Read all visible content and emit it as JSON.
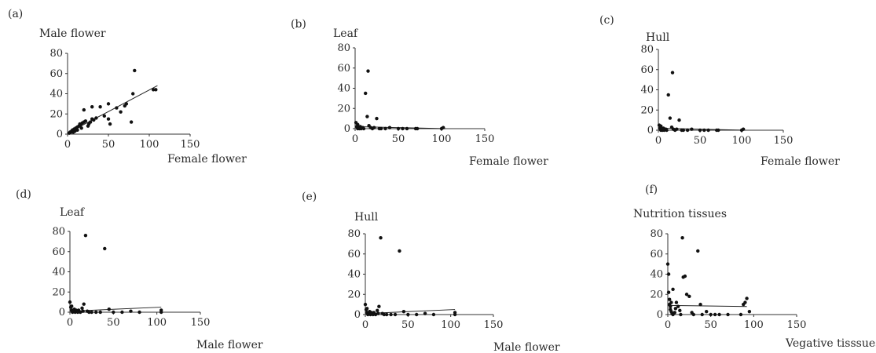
{
  "colors": {
    "point": "#111111",
    "axis": "#333333",
    "text": "#2a2a2a"
  },
  "chart_data": [
    {
      "type": "scatter",
      "panel_label": "(a)",
      "xlabel": "Female flower",
      "ylabel": "Male flower",
      "xlim": [
        0,
        150
      ],
      "ylim": [
        0,
        80
      ],
      "xticks": [
        0,
        50,
        100,
        150
      ],
      "yticks": [
        0,
        20,
        40,
        60,
        80
      ],
      "points": [
        [
          2,
          1
        ],
        [
          3,
          2
        ],
        [
          4,
          2
        ],
        [
          5,
          3
        ],
        [
          6,
          4
        ],
        [
          8,
          5
        ],
        [
          10,
          6
        ],
        [
          12,
          7
        ],
        [
          14,
          8
        ],
        [
          15,
          10
        ],
        [
          16,
          9
        ],
        [
          18,
          11
        ],
        [
          20,
          12
        ],
        [
          22,
          13
        ],
        [
          25,
          8
        ],
        [
          26,
          10
        ],
        [
          28,
          12
        ],
        [
          30,
          15
        ],
        [
          32,
          14
        ],
        [
          35,
          16
        ],
        [
          20,
          24
        ],
        [
          30,
          27
        ],
        [
          40,
          27
        ],
        [
          45,
          18
        ],
        [
          50,
          15
        ],
        [
          50,
          30
        ],
        [
          52,
          10
        ],
        [
          60,
          26
        ],
        [
          65,
          22
        ],
        [
          70,
          28
        ],
        [
          72,
          30
        ],
        [
          80,
          40
        ],
        [
          78,
          12
        ],
        [
          82,
          63
        ],
        [
          105,
          44
        ],
        [
          108,
          44
        ],
        [
          12,
          4
        ],
        [
          9,
          3
        ],
        [
          7,
          2
        ],
        [
          17,
          6
        ]
      ],
      "trendline": [
        [
          0,
          1
        ],
        [
          110,
          48
        ]
      ]
    },
    {
      "type": "scatter",
      "panel_label": "(b)",
      "xlabel": "Female flower",
      "ylabel": "Leaf",
      "xlim": [
        0,
        150
      ],
      "ylim": [
        0,
        80
      ],
      "xticks": [
        0,
        50,
        100,
        150
      ],
      "yticks": [
        0,
        20,
        40,
        60,
        80
      ],
      "points": [
        [
          1,
          6
        ],
        [
          2,
          2
        ],
        [
          3,
          0
        ],
        [
          4,
          1
        ],
        [
          5,
          0
        ],
        [
          6,
          2
        ],
        [
          8,
          1
        ],
        [
          10,
          0
        ],
        [
          12,
          35
        ],
        [
          14,
          12
        ],
        [
          15,
          57
        ],
        [
          16,
          3
        ],
        [
          18,
          1
        ],
        [
          20,
          0
        ],
        [
          22,
          1
        ],
        [
          25,
          10
        ],
        [
          28,
          0
        ],
        [
          30,
          0
        ],
        [
          35,
          0
        ],
        [
          40,
          1
        ],
        [
          50,
          0
        ],
        [
          55,
          0
        ],
        [
          60,
          0
        ],
        [
          70,
          0
        ],
        [
          72,
          0
        ],
        [
          100,
          0
        ],
        [
          102,
          1
        ],
        [
          3,
          4
        ],
        [
          7,
          0
        ],
        [
          9,
          1
        ]
      ],
      "trendline": [
        [
          0,
          2
        ],
        [
          105,
          0
        ]
      ]
    },
    {
      "type": "scatter",
      "panel_label": "(c)",
      "xlabel": "Female flower",
      "ylabel": "Hull",
      "xlim": [
        0,
        150
      ],
      "ylim": [
        0,
        80
      ],
      "xticks": [
        0,
        50,
        100,
        150
      ],
      "yticks": [
        0,
        20,
        40,
        60,
        80
      ],
      "points": [
        [
          1,
          5
        ],
        [
          2,
          2
        ],
        [
          3,
          0
        ],
        [
          4,
          1
        ],
        [
          5,
          0
        ],
        [
          6,
          2
        ],
        [
          8,
          1
        ],
        [
          10,
          0
        ],
        [
          12,
          35
        ],
        [
          14,
          12
        ],
        [
          17,
          57
        ],
        [
          16,
          3
        ],
        [
          18,
          1
        ],
        [
          20,
          0
        ],
        [
          22,
          1
        ],
        [
          25,
          10
        ],
        [
          28,
          0
        ],
        [
          30,
          0
        ],
        [
          35,
          0
        ],
        [
          40,
          1
        ],
        [
          50,
          0
        ],
        [
          55,
          0
        ],
        [
          60,
          0
        ],
        [
          70,
          0
        ],
        [
          72,
          0
        ],
        [
          100,
          0
        ],
        [
          102,
          1
        ],
        [
          3,
          4
        ],
        [
          7,
          0
        ],
        [
          9,
          1
        ]
      ],
      "trendline": [
        [
          0,
          2
        ],
        [
          105,
          0
        ]
      ]
    },
    {
      "type": "scatter",
      "panel_label": "(d)",
      "xlabel": "Male flower",
      "ylabel": "Leaf",
      "xlim": [
        0,
        150
      ],
      "ylim": [
        0,
        80
      ],
      "xticks": [
        0,
        50,
        100,
        150
      ],
      "yticks": [
        0,
        20,
        40,
        60,
        80
      ],
      "points": [
        [
          0,
          10
        ],
        [
          1,
          5
        ],
        [
          2,
          2
        ],
        [
          3,
          0
        ],
        [
          4,
          1
        ],
        [
          5,
          3
        ],
        [
          6,
          0
        ],
        [
          8,
          1
        ],
        [
          10,
          2
        ],
        [
          12,
          0
        ],
        [
          14,
          4
        ],
        [
          15,
          1
        ],
        [
          18,
          76
        ],
        [
          20,
          1
        ],
        [
          22,
          0
        ],
        [
          25,
          0
        ],
        [
          30,
          0
        ],
        [
          35,
          0
        ],
        [
          40,
          63
        ],
        [
          45,
          3
        ],
        [
          50,
          0
        ],
        [
          60,
          0
        ],
        [
          70,
          1
        ],
        [
          80,
          0
        ],
        [
          105,
          2
        ],
        [
          105,
          0
        ],
        [
          2,
          6
        ],
        [
          7,
          2
        ],
        [
          9,
          0
        ],
        [
          16,
          8
        ]
      ],
      "trendline": [
        [
          0,
          1
        ],
        [
          105,
          5
        ]
      ]
    },
    {
      "type": "scatter",
      "panel_label": "(e)",
      "xlabel": "Male flower",
      "ylabel": "Hull",
      "xlim": [
        0,
        150
      ],
      "ylim": [
        0,
        80
      ],
      "xticks": [
        0,
        50,
        100,
        150
      ],
      "yticks": [
        0,
        20,
        40,
        60,
        80
      ],
      "points": [
        [
          0,
          10
        ],
        [
          1,
          5
        ],
        [
          2,
          2
        ],
        [
          3,
          0
        ],
        [
          4,
          1
        ],
        [
          5,
          3
        ],
        [
          6,
          0
        ],
        [
          8,
          1
        ],
        [
          10,
          2
        ],
        [
          12,
          0
        ],
        [
          14,
          4
        ],
        [
          15,
          1
        ],
        [
          18,
          76
        ],
        [
          20,
          1
        ],
        [
          22,
          0
        ],
        [
          25,
          0
        ],
        [
          30,
          0
        ],
        [
          35,
          0
        ],
        [
          40,
          63
        ],
        [
          45,
          3
        ],
        [
          50,
          0
        ],
        [
          60,
          0
        ],
        [
          70,
          1
        ],
        [
          80,
          0
        ],
        [
          105,
          2
        ],
        [
          105,
          0
        ],
        [
          2,
          6
        ],
        [
          7,
          2
        ],
        [
          9,
          0
        ],
        [
          16,
          8
        ]
      ],
      "trendline": [
        [
          0,
          1
        ],
        [
          105,
          5
        ]
      ]
    },
    {
      "type": "scatter",
      "panel_label": "(f)",
      "xlabel": "Vegative tisssues",
      "ylabel": "Nutrition tissues",
      "xlim": [
        0,
        150
      ],
      "ylim": [
        0,
        80
      ],
      "xticks": [
        0,
        50,
        100,
        150
      ],
      "yticks": [
        0,
        20,
        40,
        60,
        80
      ],
      "points": [
        [
          0,
          50
        ],
        [
          1,
          40
        ],
        [
          1,
          22
        ],
        [
          2,
          15
        ],
        [
          2,
          10
        ],
        [
          3,
          8
        ],
        [
          3,
          5
        ],
        [
          4,
          3
        ],
        [
          5,
          1
        ],
        [
          6,
          0
        ],
        [
          8,
          2
        ],
        [
          10,
          12
        ],
        [
          12,
          8
        ],
        [
          14,
          4
        ],
        [
          15,
          0
        ],
        [
          17,
          76
        ],
        [
          18,
          37
        ],
        [
          20,
          38
        ],
        [
          22,
          20
        ],
        [
          25,
          18
        ],
        [
          28,
          2
        ],
        [
          30,
          0
        ],
        [
          35,
          63
        ],
        [
          38,
          10
        ],
        [
          40,
          0
        ],
        [
          45,
          3
        ],
        [
          50,
          0
        ],
        [
          55,
          0
        ],
        [
          60,
          0
        ],
        [
          70,
          0
        ],
        [
          85,
          0
        ],
        [
          88,
          10
        ],
        [
          90,
          12
        ],
        [
          92,
          16
        ],
        [
          95,
          3
        ],
        [
          6,
          25
        ],
        [
          9,
          6
        ],
        [
          4,
          12
        ]
      ],
      "trendline": [
        [
          0,
          9
        ],
        [
          92,
          8
        ]
      ]
    }
  ]
}
